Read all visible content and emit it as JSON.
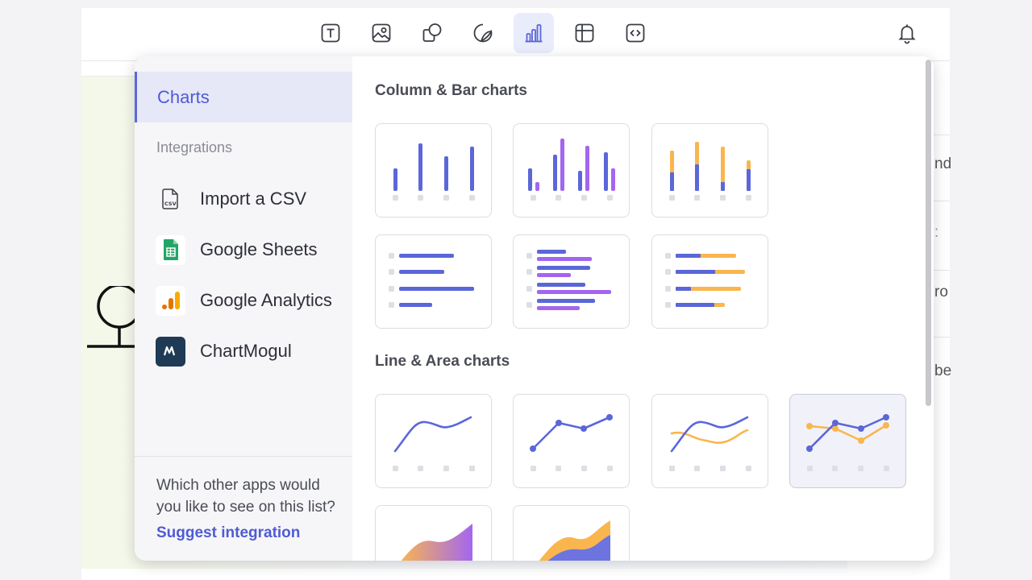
{
  "toolbar": {
    "tools": [
      {
        "icon": "text-icon"
      },
      {
        "icon": "image-icon"
      },
      {
        "icon": "shapes-icon"
      },
      {
        "icon": "sticker-icon"
      },
      {
        "icon": "chart-icon",
        "active": true
      },
      {
        "icon": "table-icon"
      },
      {
        "icon": "embed-icon"
      }
    ],
    "notification_icon": "bell-icon"
  },
  "right_panel": {
    "fragments": [
      "nd",
      ":",
      "ro",
      "be"
    ]
  },
  "popup": {
    "sidebar": {
      "active_item": "Charts",
      "section_label": "Integrations",
      "integrations": [
        {
          "label": "Import a CSV",
          "icon": "csv-file-icon"
        },
        {
          "label": "Google Sheets",
          "icon": "google-sheets-icon"
        },
        {
          "label": "Google Analytics",
          "icon": "google-analytics-icon"
        },
        {
          "label": "ChartMogul",
          "icon": "chartmogul-icon"
        }
      ],
      "footer_question": "Which other apps would you like to see on this list?",
      "footer_link": "Suggest integration"
    },
    "sections": [
      {
        "title": "Column & Bar charts"
      },
      {
        "title": "Line & Area charts"
      }
    ]
  },
  "colors": {
    "accent": "#5b67d8",
    "purple": "#a366f0",
    "orange": "#f9b64f",
    "link": "#4f5bd5"
  }
}
